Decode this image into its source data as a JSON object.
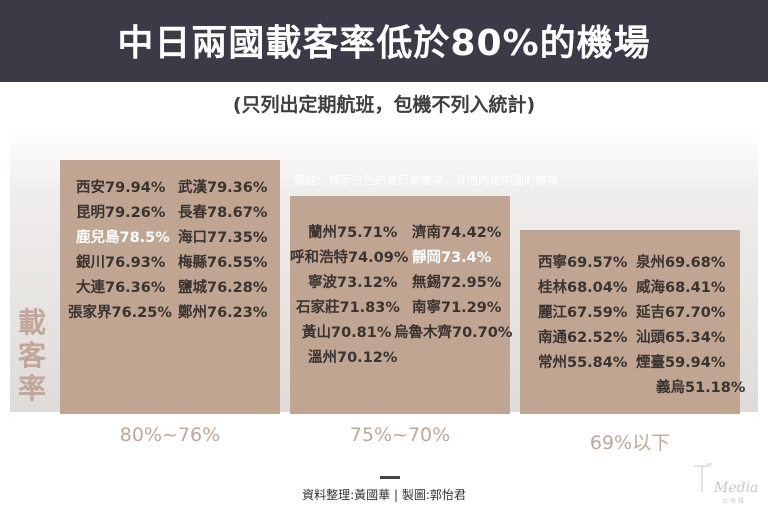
{
  "title": "中日兩國載客率低於80%的機場",
  "subtitle": "(只列出定期航班，包機不列入統計)",
  "note": "備註：標示白色的是日本機場，其他的是中國的機場",
  "footer": {
    "credit": "資料整理:黃國華 | 製圖:郭怡君"
  },
  "logo": {
    "text": "Media",
    "sub": "台 灣 媒"
  },
  "colors": {
    "header_bg": "#3c3a46",
    "bar": "#c0a593",
    "axis_text": "#c0a79a",
    "japan_text": "#ffffff",
    "china_text": "#3a3430"
  },
  "chart_data": {
    "type": "bar",
    "title": "中日兩國載客率低於80%的機場",
    "ylabel": "載客率",
    "categories": [
      "80%~76%",
      "75%~70%",
      "69%以下"
    ],
    "groups": [
      {
        "category": "80%~76%",
        "airports": [
          {
            "name": "西安",
            "rate": 79.94,
            "text": "西安79.94%",
            "country": "CN"
          },
          {
            "name": "武漢",
            "rate": 79.36,
            "text": "武漢79.36%",
            "country": "CN"
          },
          {
            "name": "昆明",
            "rate": 79.26,
            "text": "昆明79.26%",
            "country": "CN"
          },
          {
            "name": "長春",
            "rate": 78.67,
            "text": "長春78.67%",
            "country": "CN"
          },
          {
            "name": "鹿兒島",
            "rate": 78.5,
            "text": "鹿兒島78.5%",
            "country": "JP"
          },
          {
            "name": "海口",
            "rate": 77.35,
            "text": "海口77.35%",
            "country": "CN"
          },
          {
            "name": "銀川",
            "rate": 76.93,
            "text": "銀川76.93%",
            "country": "CN"
          },
          {
            "name": "梅縣",
            "rate": 76.55,
            "text": "梅縣76.55%",
            "country": "CN"
          },
          {
            "name": "大連",
            "rate": 76.36,
            "text": "大連76.36%",
            "country": "CN"
          },
          {
            "name": "鹽城",
            "rate": 76.28,
            "text": "鹽城76.28%",
            "country": "CN"
          },
          {
            "name": "張家界",
            "rate": 76.25,
            "text": "張家界76.25%",
            "country": "CN"
          },
          {
            "name": "鄭州",
            "rate": 76.23,
            "text": "鄭州76.23%",
            "country": "CN"
          }
        ]
      },
      {
        "category": "75%~70%",
        "airports": [
          {
            "name": "蘭州",
            "rate": 75.71,
            "text": "蘭州75.71%",
            "country": "CN"
          },
          {
            "name": "濟南",
            "rate": 74.42,
            "text": "濟南74.42%",
            "country": "CN"
          },
          {
            "name": "呼和浩特",
            "rate": 74.09,
            "text": "呼和浩特74.09%",
            "country": "CN"
          },
          {
            "name": "靜岡",
            "rate": 73.4,
            "text": "靜岡73.4%",
            "country": "JP"
          },
          {
            "name": "寧波",
            "rate": 73.12,
            "text": "寧波73.12%",
            "country": "CN"
          },
          {
            "name": "無錫",
            "rate": 72.95,
            "text": "無錫72.95%",
            "country": "CN"
          },
          {
            "name": "石家莊",
            "rate": 71.83,
            "text": "石家莊71.83%",
            "country": "CN"
          },
          {
            "name": "南寧",
            "rate": 71.29,
            "text": "南寧71.29%",
            "country": "CN"
          },
          {
            "name": "黃山",
            "rate": 70.81,
            "text": "黃山70.81%",
            "country": "CN"
          },
          {
            "name": "烏魯木齊",
            "rate": 70.7,
            "text": "烏魯木齊70.70%",
            "country": "CN"
          },
          {
            "name": "溫州",
            "rate": 70.12,
            "text": "溫州70.12%",
            "country": "CN"
          }
        ]
      },
      {
        "category": "69%以下",
        "airports": [
          {
            "name": "西寧",
            "rate": 69.57,
            "text": "西寧69.57%",
            "country": "CN"
          },
          {
            "name": "泉州",
            "rate": 69.68,
            "text": "泉州69.68%",
            "country": "CN"
          },
          {
            "name": "桂林",
            "rate": 68.04,
            "text": "桂林68.04%",
            "country": "CN"
          },
          {
            "name": "威海",
            "rate": 68.41,
            "text": "威海68.41%",
            "country": "CN"
          },
          {
            "name": "麗江",
            "rate": 67.59,
            "text": "麗江67.59%",
            "country": "CN"
          },
          {
            "name": "延吉",
            "rate": 67.7,
            "text": "延吉67.70%",
            "country": "CN"
          },
          {
            "name": "南通",
            "rate": 62.52,
            "text": "南通62.52%",
            "country": "CN"
          },
          {
            "name": "汕頭",
            "rate": 65.34,
            "text": "汕頭65.34%",
            "country": "CN"
          },
          {
            "name": "常州",
            "rate": 55.84,
            "text": "常州55.84%",
            "country": "CN"
          },
          {
            "name": "煙臺",
            "rate": 59.94,
            "text": "煙臺59.94%",
            "country": "CN"
          },
          {
            "name": "義烏",
            "rate": 51.18,
            "text": "義烏51.18%",
            "country": "CN"
          }
        ]
      }
    ]
  }
}
